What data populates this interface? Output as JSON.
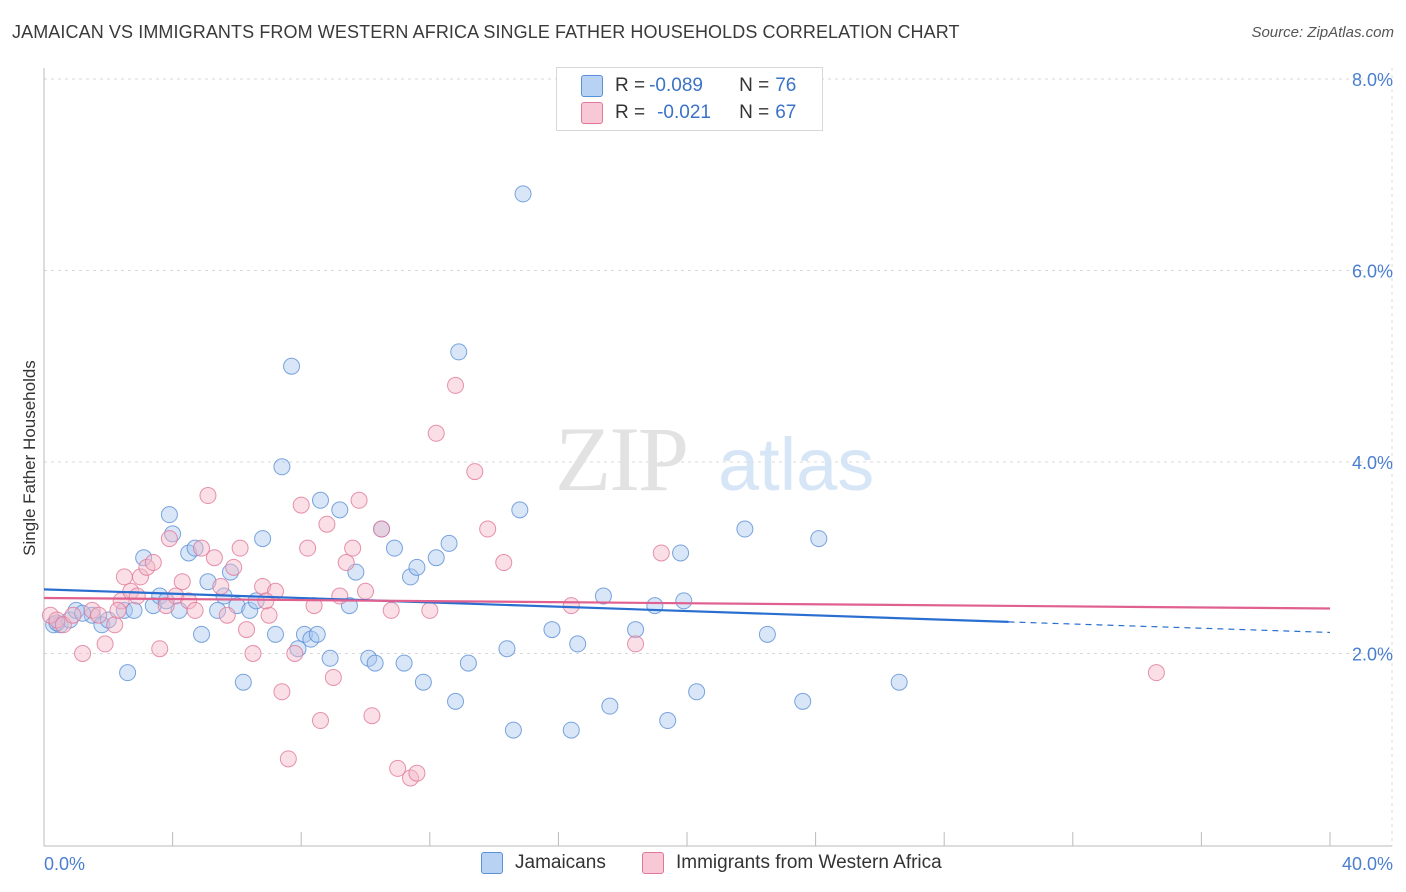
{
  "title": "JAMAICAN VS IMMIGRANTS FROM WESTERN AFRICA SINGLE FATHER HOUSEHOLDS CORRELATION CHART",
  "source": "Source: ZipAtlas.com",
  "watermark": {
    "zip": "ZIP",
    "atlas": "atlas"
  },
  "legend": {
    "row1": {
      "r_label": "R = ",
      "r_value": "-0.089",
      "n_label": "N = ",
      "n_value": "76"
    },
    "row2": {
      "r_label": "R = ",
      "r_value": "-0.021",
      "n_label": "N = ",
      "n_value": "67"
    }
  },
  "bottom_legend": {
    "series1": "Jamaicans",
    "series2": "Immigrants from Western Africa"
  },
  "colors": {
    "blue_fill": "#a8c8f0",
    "blue_stroke": "#5b8fd6",
    "blue_line": "#2a6fd0",
    "pink_fill": "#f5b8c8",
    "pink_stroke": "#e07898",
    "pink_line": "#e06090",
    "grid": "#d8d8d8",
    "tick_text": "#4a7fd0"
  },
  "chart_data": {
    "type": "scatter",
    "title": "JAMAICAN VS IMMIGRANTS FROM WESTERN AFRICA SINGLE FATHER HOUSEHOLDS CORRELATION CHART",
    "xlabel": "",
    "ylabel": "Single Father Households",
    "xlim": [
      0,
      40
    ],
    "ylim": [
      0,
      8.4
    ],
    "x_tick_labels": [
      "0.0%",
      "40.0%"
    ],
    "y_ticks": [
      2,
      4,
      6,
      8
    ],
    "y_tick_labels": [
      "2.0%",
      "4.0%",
      "6.0%",
      "8.0%"
    ],
    "grid": true,
    "legend_position": "top-center",
    "series": [
      {
        "name": "Jamaicans",
        "r": -0.089,
        "n": 76,
        "trend": {
          "x0": 0,
          "y0": 2.67,
          "x1": 30,
          "y1": 2.33,
          "dashed_to": 40,
          "dashed_y": 2.22
        },
        "points": [
          [
            0.3,
            2.3
          ],
          [
            0.5,
            2.3
          ],
          [
            0.8,
            2.35
          ],
          [
            1.0,
            2.45
          ],
          [
            1.5,
            2.4
          ],
          [
            1.8,
            2.3
          ],
          [
            2.0,
            2.35
          ],
          [
            2.5,
            2.45
          ],
          [
            2.6,
            1.8
          ],
          [
            2.8,
            2.45
          ],
          [
            3.1,
            3.0
          ],
          [
            3.4,
            2.5
          ],
          [
            3.6,
            2.6
          ],
          [
            3.9,
            3.45
          ],
          [
            4.0,
            3.25
          ],
          [
            4.2,
            2.45
          ],
          [
            4.5,
            3.05
          ],
          [
            4.7,
            3.1
          ],
          [
            4.9,
            2.2
          ],
          [
            5.1,
            2.75
          ],
          [
            5.4,
            2.45
          ],
          [
            5.6,
            2.6
          ],
          [
            5.8,
            2.85
          ],
          [
            6.0,
            2.5
          ],
          [
            6.2,
            1.7
          ],
          [
            6.4,
            2.45
          ],
          [
            6.6,
            2.55
          ],
          [
            6.8,
            3.2
          ],
          [
            7.2,
            2.2
          ],
          [
            7.4,
            3.95
          ],
          [
            7.7,
            5.0
          ],
          [
            7.9,
            2.05
          ],
          [
            8.1,
            2.2
          ],
          [
            8.3,
            2.15
          ],
          [
            8.5,
            2.2
          ],
          [
            8.6,
            3.6
          ],
          [
            8.9,
            1.95
          ],
          [
            9.2,
            3.5
          ],
          [
            9.5,
            2.5
          ],
          [
            9.7,
            2.85
          ],
          [
            10.1,
            1.95
          ],
          [
            10.3,
            1.9
          ],
          [
            10.5,
            3.3
          ],
          [
            10.9,
            3.1
          ],
          [
            11.2,
            1.9
          ],
          [
            11.4,
            2.8
          ],
          [
            11.6,
            2.9
          ],
          [
            11.8,
            1.7
          ],
          [
            12.2,
            3.0
          ],
          [
            12.6,
            3.15
          ],
          [
            12.8,
            1.5
          ],
          [
            12.9,
            5.15
          ],
          [
            13.2,
            1.9
          ],
          [
            14.4,
            2.05
          ],
          [
            14.6,
            1.2
          ],
          [
            14.8,
            3.5
          ],
          [
            14.9,
            6.8
          ],
          [
            15.8,
            2.25
          ],
          [
            16.4,
            1.2
          ],
          [
            16.6,
            2.1
          ],
          [
            17.4,
            2.6
          ],
          [
            17.6,
            1.45
          ],
          [
            18.4,
            2.25
          ],
          [
            19.0,
            2.5
          ],
          [
            19.4,
            1.3
          ],
          [
            19.8,
            3.05
          ],
          [
            19.9,
            2.55
          ],
          [
            20.3,
            1.6
          ],
          [
            21.8,
            3.3
          ],
          [
            22.5,
            2.2
          ],
          [
            23.6,
            1.5
          ],
          [
            24.1,
            3.2
          ],
          [
            26.6,
            1.7
          ],
          [
            0.4,
            2.32
          ],
          [
            1.2,
            2.42
          ],
          [
            3.8,
            2.55
          ]
        ]
      },
      {
        "name": "Immigrants from Western Africa",
        "r": -0.021,
        "n": 67,
        "trend": {
          "x0": 0,
          "y0": 2.58,
          "x1": 40,
          "y1": 2.47
        },
        "points": [
          [
            0.2,
            2.4
          ],
          [
            0.4,
            2.35
          ],
          [
            0.6,
            2.3
          ],
          [
            0.9,
            2.4
          ],
          [
            1.2,
            2.0
          ],
          [
            1.5,
            2.45
          ],
          [
            1.7,
            2.4
          ],
          [
            1.9,
            2.1
          ],
          [
            2.2,
            2.3
          ],
          [
            2.4,
            2.55
          ],
          [
            2.5,
            2.8
          ],
          [
            2.7,
            2.65
          ],
          [
            2.9,
            2.6
          ],
          [
            3.0,
            2.8
          ],
          [
            3.2,
            2.9
          ],
          [
            3.4,
            2.95
          ],
          [
            3.6,
            2.05
          ],
          [
            3.8,
            2.5
          ],
          [
            3.9,
            3.2
          ],
          [
            4.1,
            2.6
          ],
          [
            4.3,
            2.75
          ],
          [
            4.5,
            2.55
          ],
          [
            4.7,
            2.45
          ],
          [
            4.9,
            3.1
          ],
          [
            5.1,
            3.65
          ],
          [
            5.3,
            3.0
          ],
          [
            5.5,
            2.7
          ],
          [
            5.7,
            2.4
          ],
          [
            5.9,
            2.9
          ],
          [
            6.1,
            3.1
          ],
          [
            6.3,
            2.25
          ],
          [
            6.5,
            2.0
          ],
          [
            6.8,
            2.7
          ],
          [
            7.0,
            2.4
          ],
          [
            7.2,
            2.65
          ],
          [
            7.4,
            1.6
          ],
          [
            7.6,
            0.9
          ],
          [
            7.8,
            2.0
          ],
          [
            8.0,
            3.55
          ],
          [
            8.2,
            3.1
          ],
          [
            8.4,
            2.5
          ],
          [
            8.6,
            1.3
          ],
          [
            8.8,
            3.35
          ],
          [
            9.0,
            1.75
          ],
          [
            9.2,
            2.6
          ],
          [
            9.4,
            2.95
          ],
          [
            9.6,
            3.1
          ],
          [
            9.8,
            3.6
          ],
          [
            10.0,
            2.65
          ],
          [
            10.2,
            1.35
          ],
          [
            10.5,
            3.3
          ],
          [
            11.0,
            0.8
          ],
          [
            11.4,
            0.7
          ],
          [
            11.6,
            0.75
          ],
          [
            12.0,
            2.45
          ],
          [
            12.2,
            4.3
          ],
          [
            12.8,
            4.8
          ],
          [
            13.4,
            3.9
          ],
          [
            13.8,
            3.3
          ],
          [
            14.3,
            2.95
          ],
          [
            16.4,
            2.5
          ],
          [
            18.4,
            2.1
          ],
          [
            19.2,
            3.05
          ],
          [
            34.6,
            1.8
          ],
          [
            2.3,
            2.45
          ],
          [
            6.9,
            2.55
          ],
          [
            10.8,
            2.45
          ]
        ]
      }
    ]
  }
}
